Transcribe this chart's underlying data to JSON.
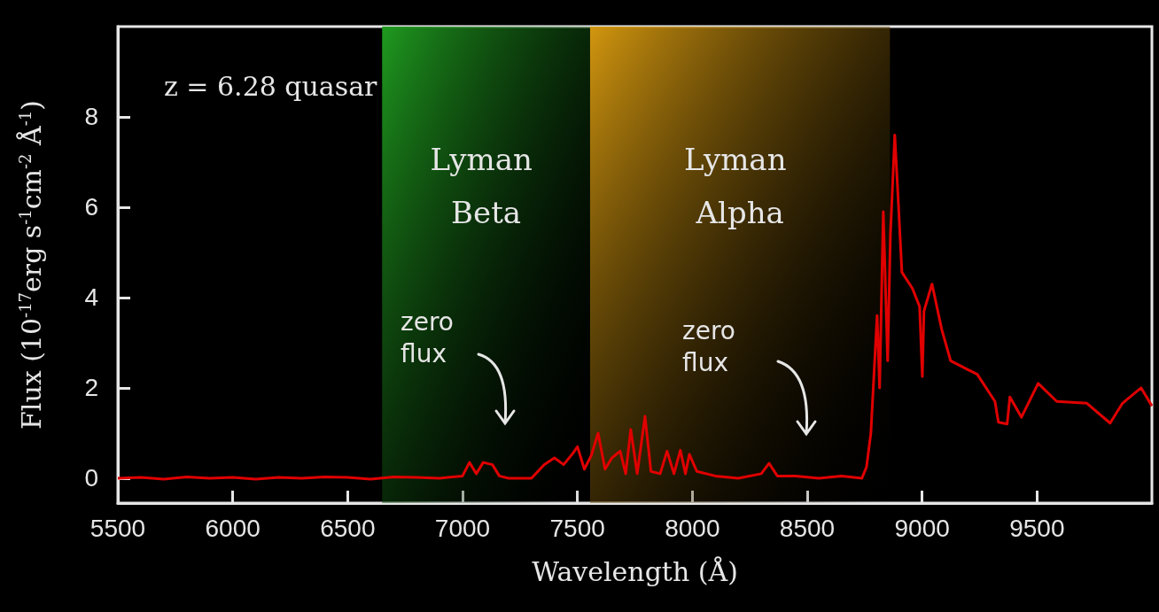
{
  "chart_data": {
    "type": "line",
    "xlabel": "Wavelength (Å)",
    "ylabel": "Flux (10$^{-17}$erg s$^{-1}$cm$^{-2}$ Å$^{-1}$)",
    "xlim": [
      5500,
      10000
    ],
    "xticks": [
      5500,
      6000,
      6500,
      7000,
      7500,
      8000,
      8500,
      9000,
      9500
    ],
    "ylim": [
      -0.55,
      10
    ],
    "yticks": [
      0,
      2,
      4,
      6,
      8
    ],
    "grid": false,
    "marker": "none",
    "line_style": "solid",
    "annotations": [
      "z = 6.28 quasar",
      "zero flux",
      "zero flux"
    ],
    "bands": [
      {
        "axis": "x",
        "from": 6650,
        "to": 7555,
        "label": "Lyman Beta",
        "color": "#1f9a1f"
      },
      {
        "axis": "x",
        "from": 7555,
        "to": 8860,
        "label": "Lyman Alpha",
        "color": "#d2960f"
      }
    ],
    "series": [
      {
        "color": "#e00000",
        "x": [
          5500,
          5600,
          5700,
          5800,
          5900,
          6000,
          6100,
          6200,
          6300,
          6400,
          6500,
          6600,
          6700,
          6800,
          6900,
          7000,
          7030,
          7060,
          7090,
          7130,
          7160,
          7200,
          7246,
          7300,
          7355,
          7400,
          7440,
          7480,
          7500,
          7530,
          7560,
          7590,
          7620,
          7650,
          7686,
          7710,
          7732,
          7760,
          7794,
          7820,
          7860,
          7890,
          7920,
          7948,
          7970,
          7987,
          8020,
          8100,
          8200,
          8300,
          8334,
          8370,
          8450,
          8550,
          8650,
          8738,
          8758,
          8777,
          8804,
          8815,
          8831,
          8850,
          8862,
          8881,
          8892,
          8912,
          8958,
          8989,
          9001,
          9008,
          9043,
          9085,
          9124,
          9201,
          9240,
          9317,
          9332,
          9370,
          9382,
          9432,
          9505,
          9586,
          9717,
          9818,
          9872,
          9953,
          10000
        ],
        "values": [
          0.0,
          0.02,
          -0.02,
          0.03,
          0.0,
          0.02,
          -0.02,
          0.02,
          0.0,
          0.03,
          0.02,
          -0.02,
          0.03,
          0.02,
          0.0,
          0.05,
          0.35,
          0.1,
          0.35,
          0.3,
          0.05,
          0.0,
          0.0,
          0.0,
          0.3,
          0.45,
          0.3,
          0.55,
          0.7,
          0.2,
          0.5,
          1.0,
          0.2,
          0.45,
          0.6,
          0.1,
          1.08,
          0.1,
          1.37,
          0.15,
          0.1,
          0.6,
          0.1,
          0.62,
          0.1,
          0.53,
          0.15,
          0.05,
          0.0,
          0.1,
          0.33,
          0.05,
          0.05,
          0.0,
          0.05,
          0.0,
          0.25,
          1.0,
          3.6,
          2.0,
          5.9,
          2.6,
          5.4,
          7.6,
          6.55,
          4.56,
          4.2,
          3.8,
          2.25,
          3.7,
          4.3,
          3.3,
          2.6,
          2.4,
          2.3,
          1.7,
          1.24,
          1.2,
          1.8,
          1.35,
          2.1,
          1.7,
          1.66,
          1.22,
          1.66,
          2.0,
          1.6
        ]
      }
    ]
  }
}
